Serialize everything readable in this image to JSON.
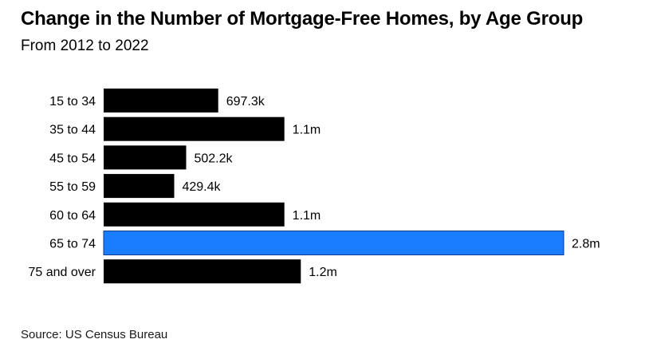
{
  "header": {
    "title": "Change in the Number of Mortgage-Free Homes, by Age Group",
    "subtitle": "From 2012 to 2022"
  },
  "footer": {
    "source": "Source: US Census Bureau"
  },
  "colors": {
    "default_bar": "#000000",
    "highlight_bar": "#1a7cff",
    "highlight_border": "#0b3d91"
  },
  "chart_data": {
    "type": "bar",
    "orientation": "horizontal",
    "title": "Change in the Number of Mortgage-Free Homes, by Age Group",
    "subtitle": "From 2012 to 2022",
    "categories": [
      "15 to 34",
      "35 to 44",
      "45 to 54",
      "55 to 59",
      "60 to 64",
      "65 to 74",
      "75 and over"
    ],
    "values": [
      697300,
      1100000,
      502200,
      429400,
      1100000,
      2800000,
      1200000
    ],
    "value_labels": [
      "697.3k",
      "1.1m",
      "502.2k",
      "429.4k",
      "1.1m",
      "2.8m",
      "1.2m"
    ],
    "highlighted_category": "65 to 74",
    "xlim": [
      0,
      2800000
    ],
    "grid": false,
    "legend": "none"
  }
}
